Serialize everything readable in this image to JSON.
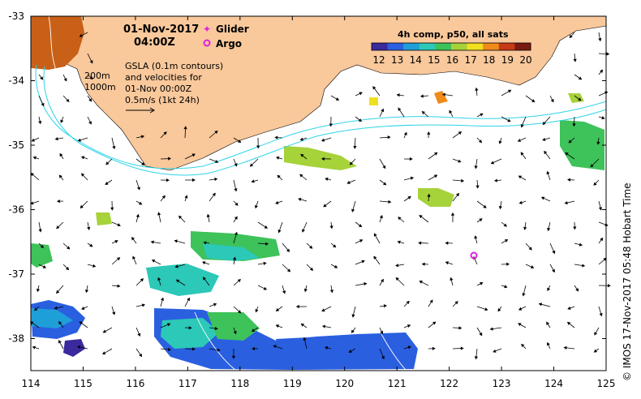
{
  "header": {
    "date": "01-Nov-2017",
    "time": "04:00Z"
  },
  "legend": {
    "glider": "Glider",
    "argo": "Argo",
    "colorbar_title": "4h comp, p50, all sats",
    "colorbar_ticks": [
      "12",
      "13",
      "14",
      "15",
      "16",
      "17",
      "18",
      "19",
      "20"
    ],
    "colorbar_colors": [
      "#3a2a9e",
      "#2a5fe0",
      "#1f9fd8",
      "#2cc8b8",
      "#3ec25a",
      "#a6d23a",
      "#f0e020",
      "#f08a1a",
      "#c83a14",
      "#7a1a10"
    ]
  },
  "annotations": {
    "line1": "GSLA (0.1m contours)",
    "line2": "and velocities for",
    "line3": "01-Nov 00:00Z",
    "line4": "0.5m/s (1kt 24h)",
    "iso1": "200m",
    "iso2": "1000m"
  },
  "axes": {
    "x_ticks": [
      "114",
      "115",
      "116",
      "117",
      "118",
      "119",
      "120",
      "121",
      "122",
      "123",
      "124",
      "125"
    ],
    "y_ticks": [
      "-33",
      "-34",
      "-35",
      "-36",
      "-37",
      "-38"
    ]
  },
  "credit": "© IMOS 17-Nov-2017 05:48 Hobart Time",
  "colors": {
    "land": "#f9c89b",
    "isobath": "#2fd4e8",
    "glider": "#e020e0",
    "argo": "#e020e0"
  }
}
